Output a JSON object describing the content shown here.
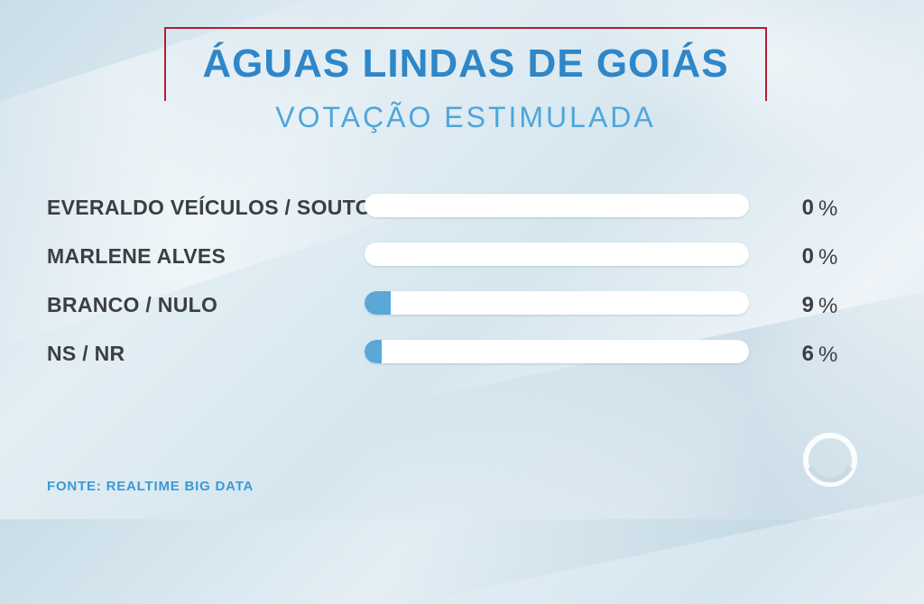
{
  "title": "ÁGUAS LINDAS DE GOIÁS",
  "subtitle": "VOTAÇÃO ESTIMULADA",
  "source": "FONTE: REALTIME BIG DATA",
  "percent_sign": "%",
  "colors": {
    "title": "#2f86c8",
    "subtitle": "#4ea6db",
    "frame": "#b02030",
    "bar_fill": "#5aa8d8",
    "bar_track": "#ffffff",
    "label": "#3b3f44"
  },
  "chart_data": {
    "type": "bar",
    "orientation": "horizontal",
    "title": "ÁGUAS LINDAS DE GOIÁS",
    "subtitle": "VOTAÇÃO ESTIMULADA",
    "categories": [
      "EVERALDO VEÍCULOS / SOUTO",
      "MARLENE ALVES",
      "BRANCO / NULO",
      "NS / NR"
    ],
    "values": [
      0,
      0,
      9,
      6
    ],
    "unit": "%",
    "xlim": [
      0,
      100
    ],
    "grid": false,
    "legend": "none"
  },
  "logo_icon": "record-broadcaster-logo-icon"
}
